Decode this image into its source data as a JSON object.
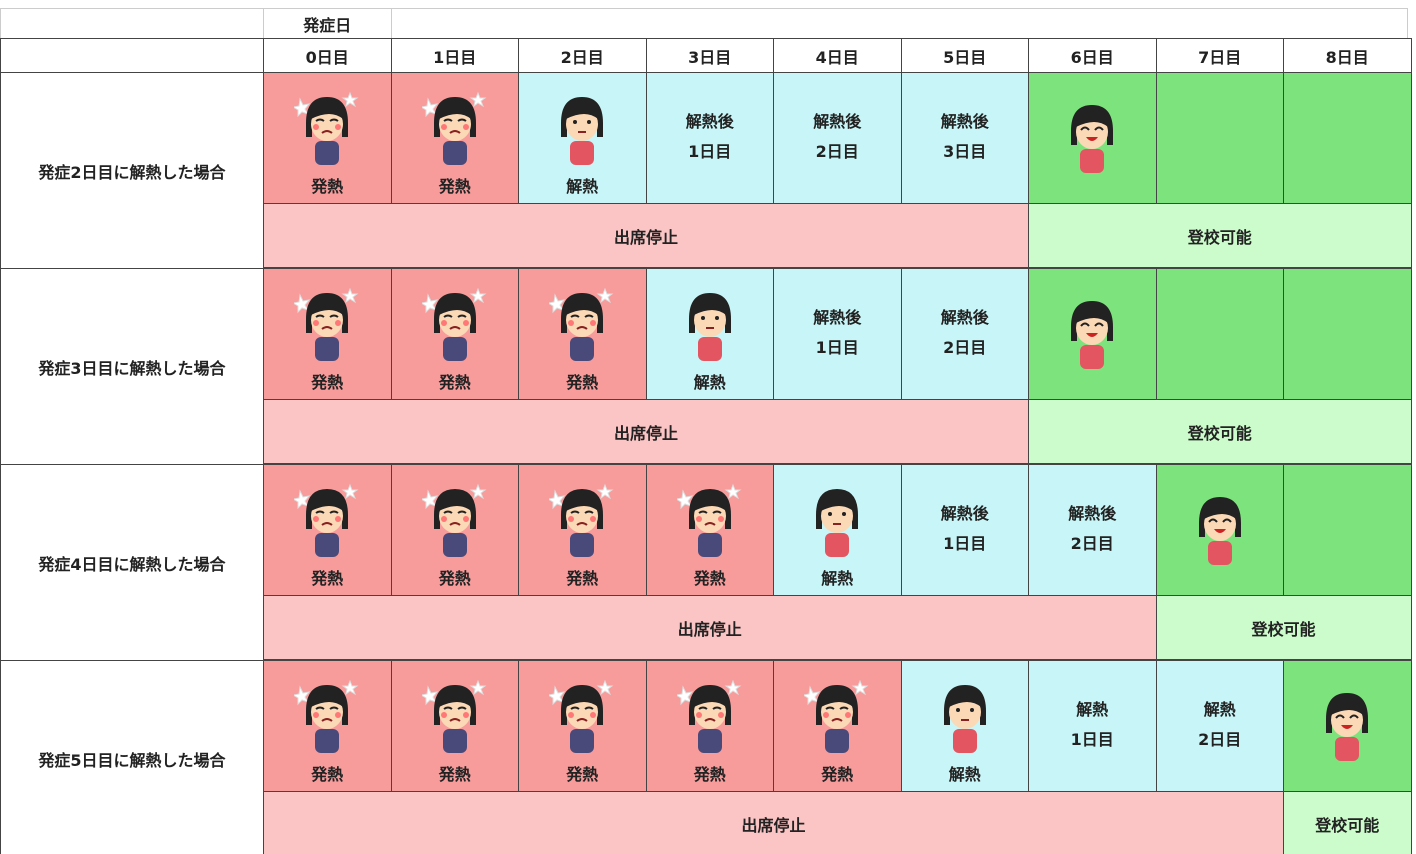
{
  "header": {
    "onset_label": "発症日",
    "days": [
      "0日目",
      "1日目",
      "2日目",
      "3日目",
      "4日目",
      "5日目",
      "6日目",
      "7日目",
      "8日目"
    ]
  },
  "groups": [
    {
      "label": "発症2日目に解熱した場合",
      "cells": [
        {
          "text": [
            "発熱"
          ],
          "color": "#f79b9b"
        },
        {
          "text": [
            "発熱"
          ],
          "color": "#f79b9b"
        },
        {
          "text": [
            "解熱"
          ],
          "color": "#c8f6f8"
        },
        {
          "text": [
            "解熱後",
            "1日目"
          ],
          "color": "#c8f6f8"
        },
        {
          "text": [
            "解熱後",
            "2日目"
          ],
          "color": "#c8f6f8"
        },
        {
          "text": [
            "解熱後",
            "3日目"
          ],
          "color": "#c8f6f8"
        },
        {
          "text": [],
          "color": "#7de37d"
        },
        {
          "text": [],
          "color": "#7de37d"
        },
        {
          "text": [],
          "color": "#7de37d"
        }
      ],
      "bands": [
        {
          "text": "出席停止",
          "color": "#fcc5c5"
        },
        {
          "text": "登校可能",
          "color": "#ccfccc"
        }
      ]
    },
    {
      "label": "発症3日目に解熱した場合",
      "cells": [
        {
          "text": [
            "発熱"
          ],
          "color": "#f79b9b"
        },
        {
          "text": [
            "発熱"
          ],
          "color": "#f79b9b"
        },
        {
          "text": [
            "発熱"
          ],
          "color": "#f79b9b"
        },
        {
          "text": [
            "解熱"
          ],
          "color": "#c8f6f8"
        },
        {
          "text": [
            "解熱後",
            "1日目"
          ],
          "color": "#c8f6f8"
        },
        {
          "text": [
            "解熱後",
            "2日目"
          ],
          "color": "#c8f6f8"
        },
        {
          "text": [],
          "color": "#7de37d"
        },
        {
          "text": [],
          "color": "#7de37d"
        },
        {
          "text": [],
          "color": "#7de37d"
        }
      ],
      "bands": [
        {
          "text": "出席停止",
          "color": "#fcc5c5"
        },
        {
          "text": "登校可能",
          "color": "#ccfccc"
        }
      ]
    },
    {
      "label": "発症4日目に解熱した場合",
      "cells": [
        {
          "text": [
            "発熱"
          ],
          "color": "#f79b9b"
        },
        {
          "text": [
            "発熱"
          ],
          "color": "#f79b9b"
        },
        {
          "text": [
            "発熱"
          ],
          "color": "#f79b9b"
        },
        {
          "text": [
            "発熱"
          ],
          "color": "#f79b9b"
        },
        {
          "text": [
            "解熱"
          ],
          "color": "#c8f6f8"
        },
        {
          "text": [
            "解熱後",
            "1日目"
          ],
          "color": "#c8f6f8"
        },
        {
          "text": [
            "解熱後",
            "2日目"
          ],
          "color": "#c8f6f8"
        },
        {
          "text": [],
          "color": "#7de37d"
        },
        {
          "text": [],
          "color": "#7de37d"
        }
      ],
      "bands": [
        {
          "text": "出席停止",
          "color": "#fcc5c5"
        },
        {
          "text": "登校可能",
          "color": "#ccfccc"
        }
      ]
    },
    {
      "label": "発症5日目に解熱した場合",
      "cells": [
        {
          "text": [
            "発熱"
          ],
          "color": "#f79b9b"
        },
        {
          "text": [
            "発熱"
          ],
          "color": "#f79b9b"
        },
        {
          "text": [
            "発熱"
          ],
          "color": "#f79b9b"
        },
        {
          "text": [
            "発熱"
          ],
          "color": "#f79b9b"
        },
        {
          "text": [
            "発熱"
          ],
          "color": "#f79b9b"
        },
        {
          "text": [
            "解熱"
          ],
          "color": "#c8f6f8"
        },
        {
          "text": [
            "解熱",
            "1日目"
          ],
          "color": "#c8f6f8"
        },
        {
          "text": [
            "解熱",
            "2日目"
          ],
          "color": "#c8f6f8"
        },
        {
          "text": [],
          "color": "#7de37d"
        }
      ],
      "bands": [
        {
          "text": "出席停止",
          "color": "#fcc5c5"
        },
        {
          "text": "登校可能",
          "color": "#ccfccc"
        }
      ]
    }
  ]
}
